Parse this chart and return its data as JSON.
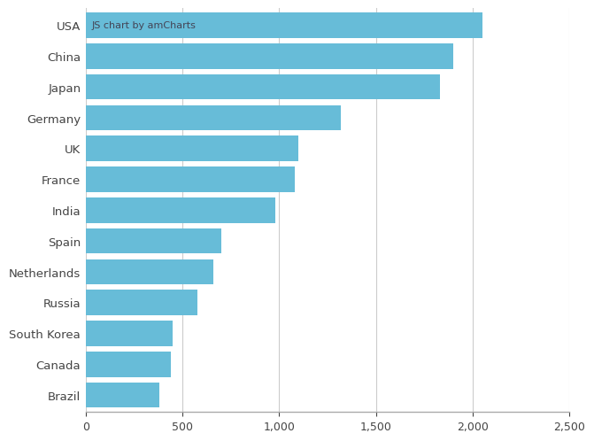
{
  "categories": [
    "USA",
    "China",
    "Japan",
    "Germany",
    "UK",
    "France",
    "India",
    "Spain",
    "Netherlands",
    "Russia",
    "South Korea",
    "Canada",
    "Brazil"
  ],
  "values": [
    2050,
    1900,
    1830,
    1320,
    1100,
    1080,
    980,
    700,
    660,
    575,
    450,
    440,
    380
  ],
  "bar_color": "#67bcd8",
  "background_color": "#ffffff",
  "grid_color": "#cccccc",
  "text_color": "#444444",
  "annotation_text": "JS chart by amCharts",
  "annotation_color": "#444455",
  "xlim": [
    0,
    2500
  ],
  "xticks": [
    0,
    500,
    1000,
    1500,
    2000,
    2500
  ],
  "tick_fontsize": 9,
  "label_fontsize": 9.5,
  "bar_height": 0.82
}
